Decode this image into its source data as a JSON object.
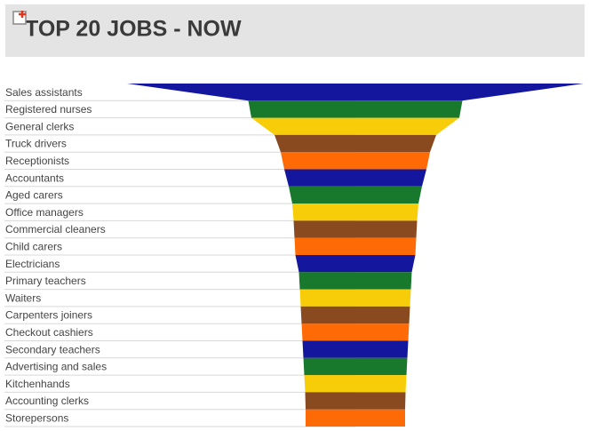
{
  "chart_data": {
    "type": "funnel",
    "title": "TOP 20 JOBS - NOW",
    "categories": [
      "Sales assistants",
      "Registered nurses",
      "General clerks",
      "Truck drivers",
      "Receptionists",
      "Accountants",
      "Aged carers",
      "Office managers",
      "Commercial cleaners",
      "Child carers",
      "Electricians",
      "Primary teachers",
      "Waiters",
      "Carpenters joiners",
      "Checkout cashiers",
      "Secondary teachers",
      "Advertising and sales",
      "Kitchenhands",
      "Accounting clerks",
      "Storepersons"
    ],
    "values": [
      514,
      241,
      234,
      182,
      168,
      160,
      150,
      142,
      139,
      137,
      135,
      127,
      125,
      123,
      121,
      119,
      117,
      115,
      113,
      112
    ],
    "colors": [
      "#14179e",
      "#18792c",
      "#f7cd0a",
      "#8a4a20",
      "#fd6a06"
    ]
  }
}
